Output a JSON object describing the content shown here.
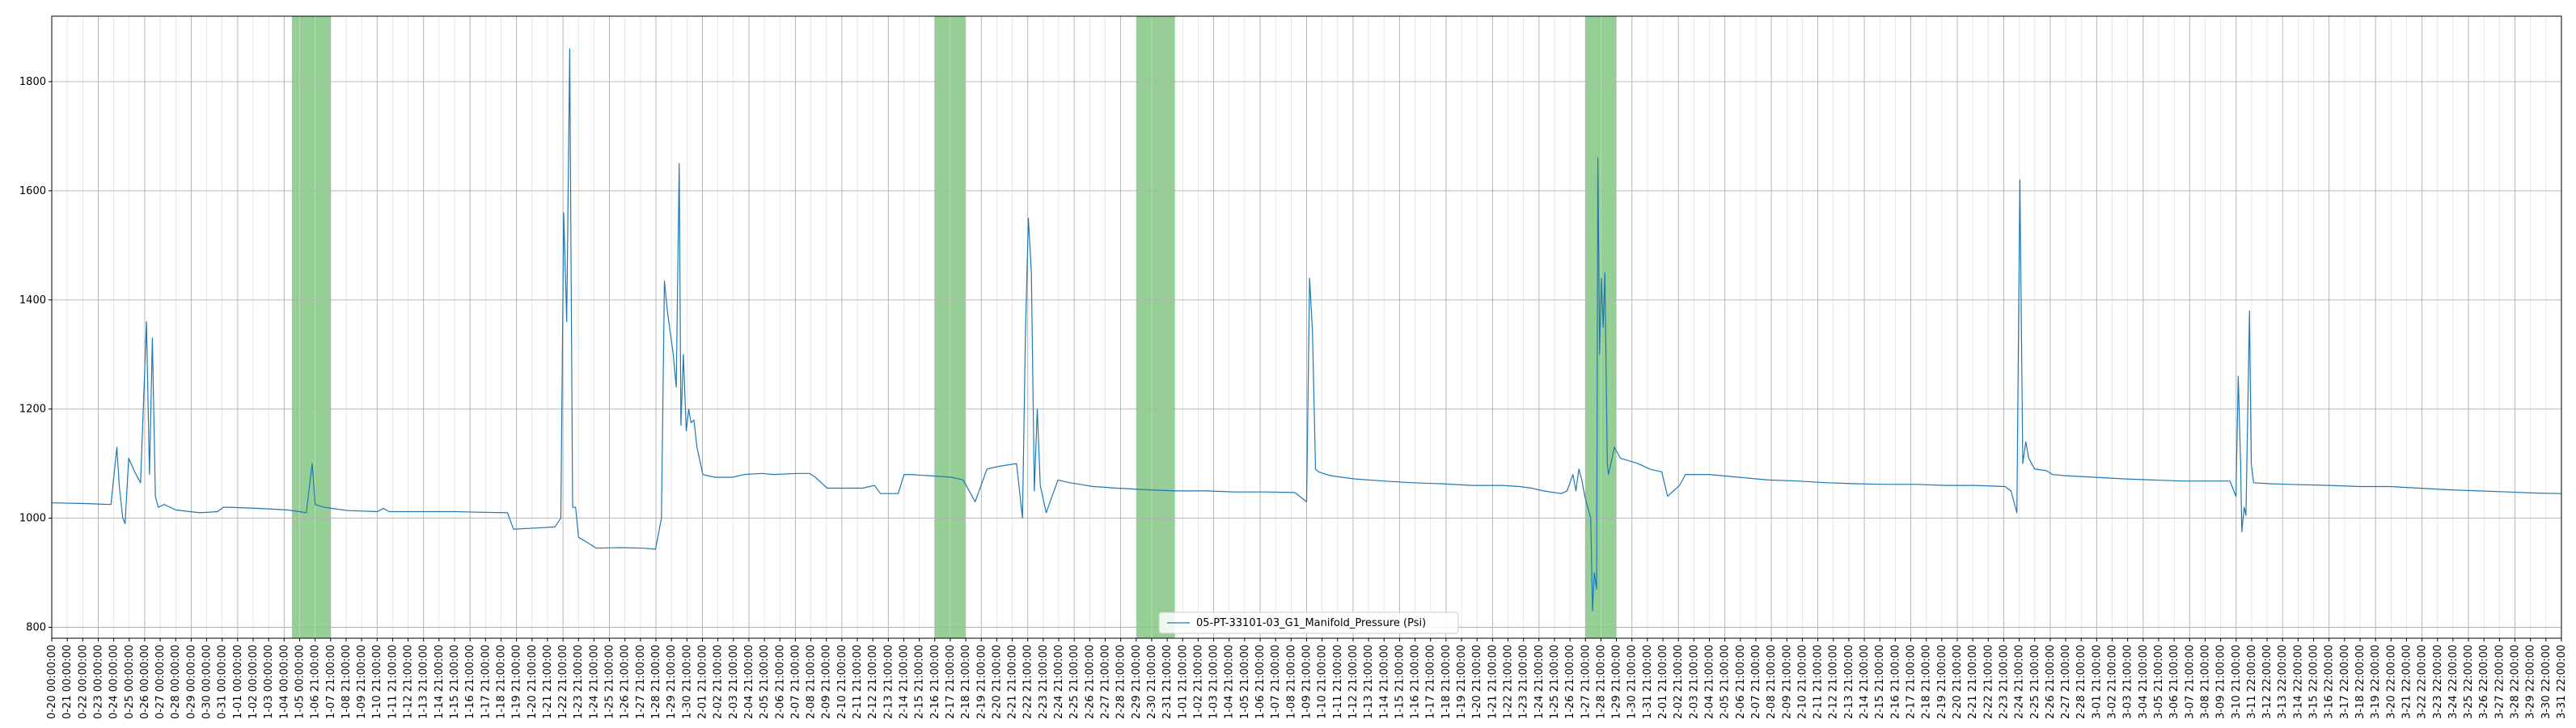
{
  "chart_data": {
    "type": "line",
    "title": "",
    "xlabel": "",
    "ylabel": "",
    "ylim": [
      780,
      1920
    ],
    "grid": true,
    "legend": "bottom-center",
    "series": [
      {
        "name": "05-PT-33101-03_G1_Manifold_Pressure (Psi)",
        "color": "#1f77b4",
        "points": [
          [
            0,
            1028
          ],
          [
            5,
            1027
          ],
          [
            10,
            1025
          ],
          [
            11,
            1130
          ],
          [
            11.4,
            1060
          ],
          [
            12,
            1000
          ],
          [
            12.4,
            990
          ],
          [
            13,
            1110
          ],
          [
            14,
            1085
          ],
          [
            15,
            1065
          ],
          [
            16,
            1360
          ],
          [
            16.5,
            1080
          ],
          [
            17,
            1330
          ],
          [
            17.5,
            1040
          ],
          [
            18,
            1020
          ],
          [
            19,
            1025
          ],
          [
            21,
            1015
          ],
          [
            25,
            1010
          ],
          [
            28,
            1012
          ],
          [
            29,
            1020
          ],
          [
            30,
            1020
          ],
          [
            35,
            1018
          ],
          [
            40,
            1015
          ],
          [
            43,
            1010
          ],
          [
            44,
            1100
          ],
          [
            44.5,
            1025
          ],
          [
            46,
            1020
          ],
          [
            50,
            1014
          ],
          [
            55,
            1012
          ],
          [
            56,
            1018
          ],
          [
            57,
            1012
          ],
          [
            62,
            1012
          ],
          [
            68,
            1012
          ],
          [
            72,
            1011
          ],
          [
            77,
            1010
          ],
          [
            78,
            980
          ],
          [
            82,
            982
          ],
          [
            85,
            984
          ],
          [
            86,
            1000
          ],
          [
            86.5,
            1560
          ],
          [
            87,
            1360
          ],
          [
            87.5,
            1860
          ],
          [
            88,
            1020
          ],
          [
            88.5,
            1020
          ],
          [
            89,
            965
          ],
          [
            91,
            952
          ],
          [
            92,
            945
          ],
          [
            96,
            946
          ],
          [
            100,
            945
          ],
          [
            102,
            943
          ],
          [
            103,
            1000
          ],
          [
            103.5,
            1435
          ],
          [
            104,
            1380
          ],
          [
            105,
            1300
          ],
          [
            105.5,
            1240
          ],
          [
            106,
            1650
          ],
          [
            106.3,
            1170
          ],
          [
            106.7,
            1300
          ],
          [
            107.2,
            1160
          ],
          [
            107.6,
            1200
          ],
          [
            108,
            1175
          ],
          [
            108.5,
            1180
          ],
          [
            109,
            1130
          ],
          [
            110,
            1080
          ],
          [
            112,
            1075
          ],
          [
            115,
            1075
          ],
          [
            117,
            1080
          ],
          [
            120,
            1082
          ],
          [
            122,
            1080
          ],
          [
            126,
            1082
          ],
          [
            128,
            1082
          ],
          [
            129,
            1075
          ],
          [
            131,
            1055
          ],
          [
            133,
            1055
          ],
          [
            137,
            1055
          ],
          [
            139,
            1060
          ],
          [
            140,
            1045
          ],
          [
            143,
            1045
          ],
          [
            144,
            1080
          ],
          [
            145,
            1080
          ],
          [
            148,
            1078
          ],
          [
            152,
            1075
          ],
          [
            154,
            1070
          ],
          [
            155,
            1050
          ],
          [
            156,
            1030
          ],
          [
            157,
            1060
          ],
          [
            158,
            1090
          ],
          [
            160,
            1095
          ],
          [
            163,
            1100
          ],
          [
            164,
            1000
          ],
          [
            164.5,
            1340
          ],
          [
            165,
            1550
          ],
          [
            165.5,
            1450
          ],
          [
            166,
            1050
          ],
          [
            166.5,
            1200
          ],
          [
            167,
            1060
          ],
          [
            168,
            1010
          ],
          [
            169,
            1040
          ],
          [
            170,
            1070
          ],
          [
            172,
            1065
          ],
          [
            176,
            1058
          ],
          [
            180,
            1055
          ],
          [
            185,
            1052
          ],
          [
            190,
            1050
          ],
          [
            195,
            1050
          ],
          [
            200,
            1048
          ],
          [
            205,
            1048
          ],
          [
            210,
            1047
          ],
          [
            212,
            1030
          ],
          [
            212.5,
            1440
          ],
          [
            213,
            1340
          ],
          [
            213.5,
            1090
          ],
          [
            214,
            1085
          ],
          [
            216,
            1078
          ],
          [
            220,
            1072
          ],
          [
            225,
            1068
          ],
          [
            230,
            1065
          ],
          [
            235,
            1063
          ],
          [
            240,
            1060
          ],
          [
            245,
            1060
          ],
          [
            248,
            1058
          ],
          [
            250,
            1055
          ],
          [
            252,
            1050
          ],
          [
            255,
            1045
          ],
          [
            256,
            1050
          ],
          [
            257,
            1080
          ],
          [
            257.5,
            1050
          ],
          [
            258,
            1090
          ],
          [
            258.5,
            1070
          ],
          [
            259,
            1040
          ],
          [
            260,
            1000
          ],
          [
            260.3,
            830
          ],
          [
            260.6,
            900
          ],
          [
            261,
            870
          ],
          [
            261.2,
            1660
          ],
          [
            261.5,
            1300
          ],
          [
            261.8,
            1440
          ],
          [
            262.1,
            1350
          ],
          [
            262.4,
            1450
          ],
          [
            262.8,
            1100
          ],
          [
            263,
            1080
          ],
          [
            264,
            1130
          ],
          [
            265,
            1110
          ],
          [
            268,
            1100
          ],
          [
            270,
            1090
          ],
          [
            272,
            1085
          ],
          [
            273,
            1040
          ],
          [
            275,
            1060
          ],
          [
            276,
            1080
          ],
          [
            280,
            1080
          ],
          [
            285,
            1075
          ],
          [
            290,
            1070
          ],
          [
            295,
            1068
          ],
          [
            300,
            1065
          ],
          [
            305,
            1063
          ],
          [
            310,
            1062
          ],
          [
            315,
            1062
          ],
          [
            320,
            1060
          ],
          [
            325,
            1060
          ],
          [
            330,
            1058
          ],
          [
            331,
            1050
          ],
          [
            332,
            1010
          ],
          [
            332.5,
            1620
          ],
          [
            333,
            1100
          ],
          [
            333.5,
            1140
          ],
          [
            334,
            1110
          ],
          [
            335,
            1090
          ],
          [
            337,
            1087
          ],
          [
            338,
            1080
          ],
          [
            340,
            1078
          ],
          [
            345,
            1075
          ],
          [
            350,
            1072
          ],
          [
            355,
            1070
          ],
          [
            360,
            1068
          ],
          [
            365,
            1068
          ],
          [
            368,
            1068
          ],
          [
            369,
            1040
          ],
          [
            369.4,
            1260
          ],
          [
            369.8,
            1100
          ],
          [
            370,
            975
          ],
          [
            370.4,
            1020
          ],
          [
            370.7,
            1005
          ],
          [
            371,
            1190
          ],
          [
            371.3,
            1380
          ],
          [
            371.6,
            1100
          ],
          [
            372,
            1065
          ],
          [
            375,
            1063
          ],
          [
            378,
            1062
          ],
          [
            385,
            1060
          ],
          [
            390,
            1058
          ],
          [
            395,
            1058
          ],
          [
            400,
            1055
          ],
          [
            405,
            1052
          ],
          [
            410,
            1050
          ],
          [
            415,
            1048
          ],
          [
            420,
            1046
          ],
          [
            424,
            1045
          ]
        ]
      }
    ],
    "shaded_spans": [
      [
        15.5,
        18
      ],
      [
        57,
        59
      ],
      [
        70,
        72.5
      ],
      [
        99,
        101
      ],
      [
        259,
        261.5
      ],
      [
        371,
        373
      ]
    ],
    "shade_color": "#2ca02c",
    "yticks": [
      800,
      1000,
      1200,
      1400,
      1600,
      1800
    ],
    "xtick_labels": [
      "0-20 00:00:00",
      "0-21 00:00:00",
      "0-22 00:00:00",
      "0-23 00:00:00",
      "0-24 00:00:00",
      "0-25 00:00:00",
      "0-26 00:00:00",
      "0-27 00:00:00",
      "0-28 00:00:00",
      "0-29 00:00:00",
      "0-30 00:00:00",
      "0-31 00:00:00",
      "1-01 00:00:00",
      "1-02 00:00:00",
      "1-03 00:00:00",
      "1-04 00:00:00",
      "1-05 00:00:00",
      "1-06 21:00:00",
      "1-07 21:00:00",
      "1-08 21:00:00",
      "1-09 21:00:00",
      "1-10 21:00:00",
      "1-11 21:00:00",
      "1-12 21:00:00",
      "1-13 21:00:00",
      "1-14 21:00:00",
      "1-15 21:00:00",
      "1-16 21:00:00",
      "1-17 21:00:00",
      "1-18 21:00:00",
      "1-19 21:00:00",
      "1-20 21:00:00",
      "1-21 21:00:00",
      "1-22 21:00:00",
      "1-23 21:00:00",
      "1-24 21:00:00",
      "1-25 21:00:00",
      "1-26 21:00:00",
      "1-27 21:00:00",
      "1-28 21:00:00",
      "1-29 21:00:00",
      "1-30 21:00:00",
      "2-01 21:00:00",
      "2-02 21:00:00",
      "2-03 21:00:00",
      "2-04 21:00:00",
      "2-05 21:00:00",
      "2-06 21:00:00",
      "2-07 21:00:00",
      "2-08 21:00:00",
      "2-09 21:00:00",
      "2-10 21:00:00",
      "2-11 21:00:00",
      "2-12 21:00:00",
      "2-13 21:00:00",
      "2-14 21:00:00",
      "2-15 21:00:00",
      "2-16 21:00:00",
      "2-17 21:00:00",
      "2-18 21:00:00",
      "2-19 21:00:00",
      "2-20 21:00:00",
      "2-21 21:00:00",
      "2-22 21:00:00",
      "2-23 21:00:00",
      "2-24 21:00:00",
      "2-25 21:00:00",
      "2-26 21:00:00",
      "2-27 21:00:00",
      "2-28 21:00:00",
      "2-29 21:00:00",
      "2-30 21:00:00",
      "2-31 21:00:00",
      "1-01 21:00:00",
      "1-02 21:00:00",
      "1-03 21:00:00",
      "1-04 21:00:00",
      "1-05 21:00:00",
      "1-06 21:00:00",
      "1-07 21:00:00",
      "1-08 21:00:00",
      "1-09 21:00:00",
      "1-10 21:00:00",
      "1-11 21:00:00",
      "1-12 21:00:00",
      "1-13 21:00:00",
      "1-14 21:00:00",
      "1-15 21:00:00",
      "1-16 21:00:00",
      "1-17 21:00:00",
      "1-18 21:00:00",
      "1-19 21:00:00",
      "1-20 21:00:00",
      "1-21 21:00:00",
      "1-22 21:00:00",
      "1-23 21:00:00",
      "1-24 21:00:00",
      "1-25 21:00:00",
      "1-26 21:00:00",
      "1-27 21:00:00",
      "1-28 21:00:00",
      "1-29 21:00:00",
      "1-30 21:00:00",
      "1-31 21:00:00",
      "2-01 21:00:00",
      "2-02 21:00:00",
      "2-03 21:00:00",
      "2-04 21:00:00",
      "2-05 21:00:00",
      "2-06 21:00:00",
      "2-07 21:00:00",
      "2-08 21:00:00",
      "2-09 21:00:00",
      "2-10 21:00:00",
      "2-11 21:00:00",
      "2-12 21:00:00",
      "2-13 21:00:00",
      "2-14 21:00:00",
      "2-15 21:00:00",
      "2-16 21:00:00",
      "2-17 21:00:00",
      "2-18 21:00:00",
      "2-19 21:00:00",
      "2-20 21:00:00",
      "2-21 21:00:00",
      "2-22 21:00:00",
      "2-23 21:00:00",
      "2-24 21:00:00",
      "2-25 21:00:00",
      "2-26 21:00:00",
      "2-27 21:00:00",
      "2-28 21:00:00",
      "3-01 21:00:00",
      "3-02 21:00:00",
      "3-03 21:00:00",
      "3-04 21:00:00",
      "3-05 21:00:00",
      "3-06 21:00:00",
      "3-07 21:00:00",
      "3-08 21:00:00",
      "3-09 21:00:00",
      "3-10 21:00:00",
      "3-11 22:00:00",
      "3-12 22:00:00",
      "3-13 22:00:00",
      "3-14 22:00:00",
      "3-15 22:00:00",
      "3-16 22:00:00",
      "3-17 22:00:00",
      "3-18 22:00:00",
      "3-19 22:00:00",
      "3-20 22:00:00",
      "3-21 22:00:00",
      "3-22 22:00:00",
      "3-23 22:00:00",
      "3-24 22:00:00",
      "3-25 22:00:00",
      "3-26 22:00:00",
      "3-27 22:00:00",
      "3-28 22:00:00",
      "3-29 22:00:00",
      "3-30 22:00:00",
      "3-31 22:00:00"
    ]
  }
}
